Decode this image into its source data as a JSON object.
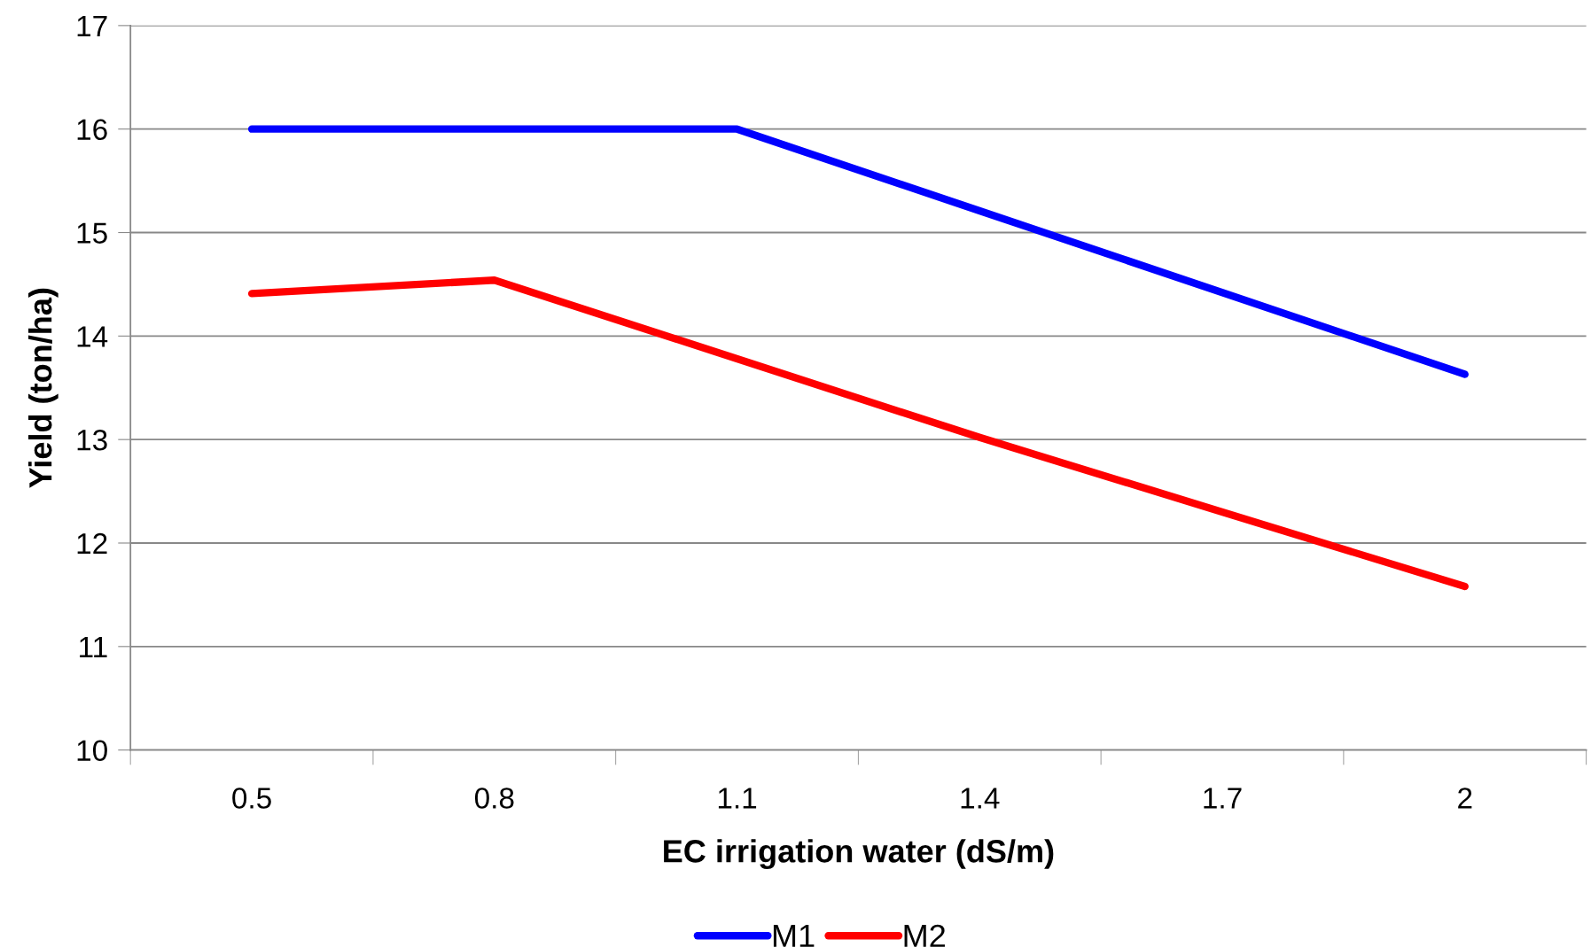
{
  "chart_data": {
    "type": "line",
    "xlabel": "EC irrigation water (dS/m)",
    "ylabel": "Yield (ton/ha)",
    "categories": [
      "0.5",
      "0.8",
      "1.1",
      "1.4",
      "1.7",
      "2"
    ],
    "series": [
      {
        "name": "M1",
        "color": "#0000ff",
        "values": [
          16,
          16,
          16,
          15.21,
          14.42,
          13.63
        ]
      },
      {
        "name": "M2",
        "color": "#ff0000",
        "values": [
          14.41,
          14.54,
          13.78,
          13.02,
          12.3,
          11.58
        ]
      }
    ],
    "ylim": [
      10,
      17
    ],
    "yticks": [
      10,
      11,
      12,
      13,
      14,
      15,
      16,
      17
    ],
    "grid": "y",
    "legend": "bottom",
    "marker": "none",
    "line_style": "solid"
  }
}
